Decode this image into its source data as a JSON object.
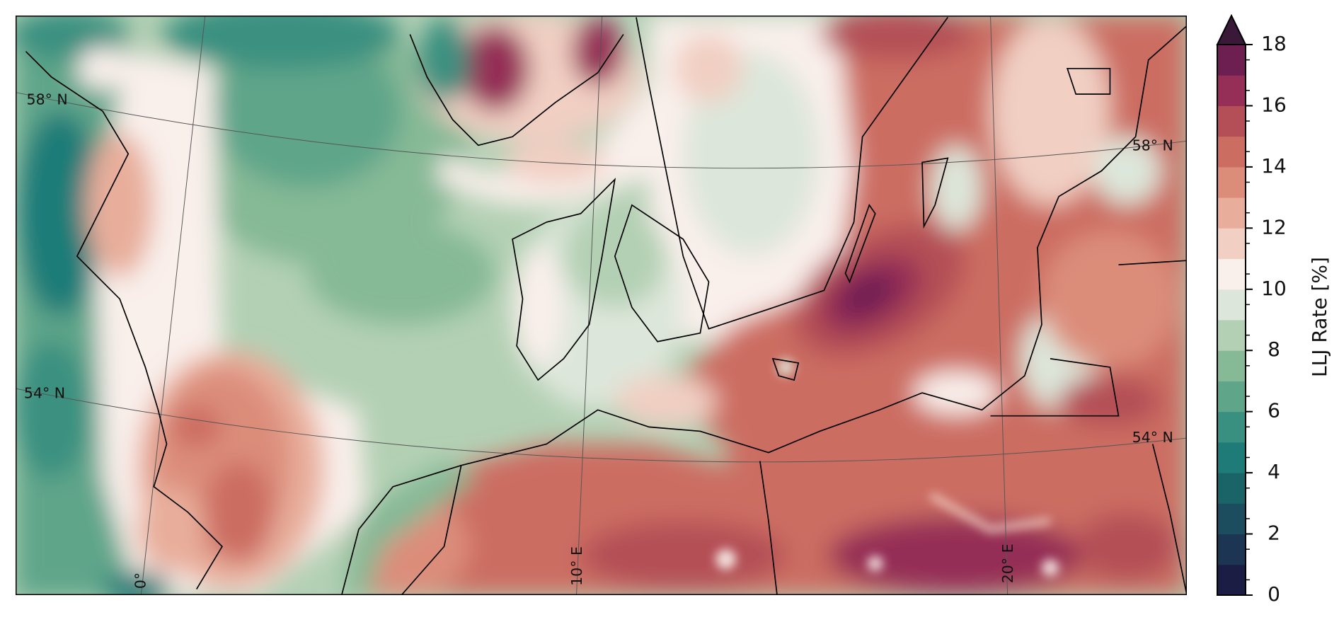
{
  "map": {
    "gridline_labels": [
      "58° N",
      "54° N",
      "58° N",
      "54° N",
      "0°",
      "10° E",
      "20° E"
    ]
  },
  "colorbar": {
    "label": "LLJ Rate [%]",
    "lim": [
      0,
      18
    ],
    "ticks": [
      0,
      2,
      4,
      6,
      8,
      10,
      12,
      14,
      16,
      18
    ],
    "colors": [
      "#1b1d45",
      "#1c3552",
      "#1b4d5e",
      "#1a6468",
      "#1f7b78",
      "#3a9080",
      "#5ea58a",
      "#86b996",
      "#b3d0b4",
      "#dde6da",
      "#f9efeb",
      "#f1cfc3",
      "#e8ae9b",
      "#dc8d7a",
      "#cc6d62",
      "#b44f57",
      "#952f57",
      "#6e1f52"
    ],
    "extend_color": "#3a1838"
  }
}
